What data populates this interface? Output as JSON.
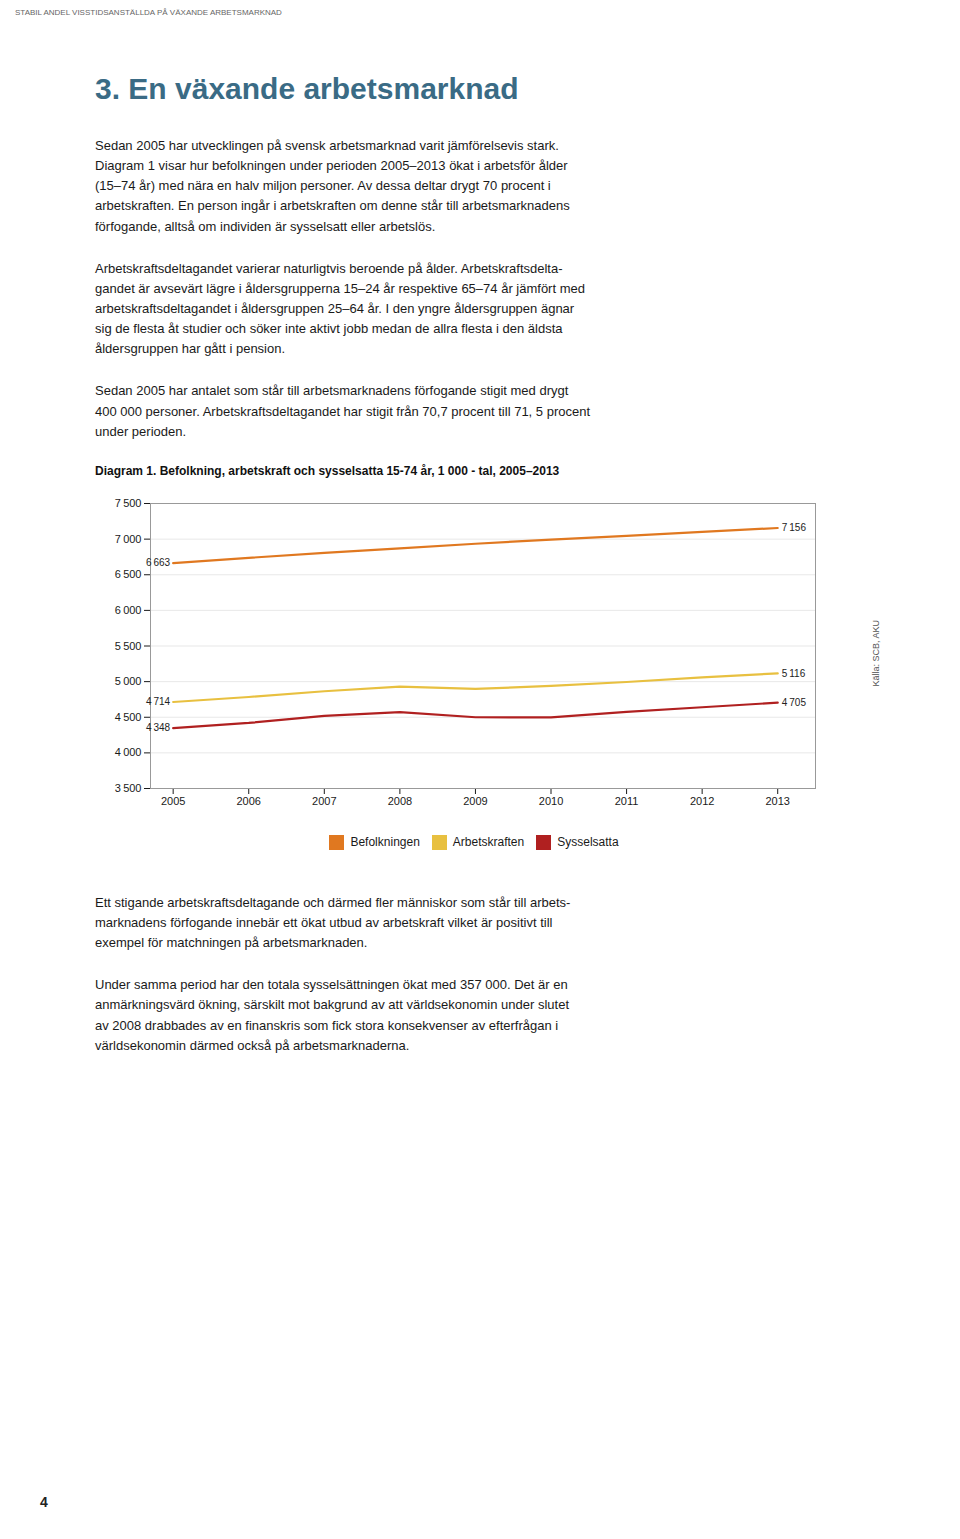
{
  "header": "STABIL ANDEL VISSTIDSANSTÄLLDA PÅ VÄXANDE ARBETSMARKNAD",
  "section_title": "3.  En växande arbetsmarknad",
  "paragraphs_before": [
    "Sedan 2005 har utvecklingen på svensk arbetsmarknad varit jämförelsevis stark.\nDiagram 1 visar hur befolkningen under perioden 2005–2013 ökat i arbetsför ålder\n(15–74 år) med nära en halv miljon personer. Av dessa deltar drygt 70 procent i\narbetskraften. En person ingår i arbetskraften om denne står till arbetsmarknadens\nförfogande, alltså om individen är sysselsatt eller arbetslös.",
    "Arbetskraftsdeltagandet varierar naturligtvis beroende på ålder. Arbetskraftsdelta-\ngandet är avsevärt lägre i åldersgrupperna 15–24 år respektive 65–74 år jämfört med\narbetskraftsdeltagandet i åldersgruppen 25–64 år. I den yngre åldersgruppen ägnar\nsig de flesta åt studier och söker inte aktivt jobb medan de allra flesta i den äldsta\nåldersgruppen har gått i pension.",
    "Sedan 2005 har antalet som står till arbetsmarknadens förfogande stigit med drygt\n400 000 personer. Arbetskraftsdeltagandet har stigit från 70,7 procent till 71, 5 procent\nunder perioden."
  ],
  "paragraphs_after": [
    "Ett stigande arbetskraftsdeltagande och därmed fler människor som står till arbets-\nmarknadens förfogande innebär ett ökat utbud av arbetskraft vilket är positivt till\nexempel för matchningen på arbetsmarknaden.",
    "Under samma period har den totala sysselsättningen ökat med 357 000. Det är en\nanmärkningsvärd ökning, särskilt mot bakgrund av att världsekonomin under slutet\nav 2008 drabbades av en finanskris som fick stora konsekvenser av efterfrågan i\nvärldsekonomin därmed också på arbetsmarknaderna."
  ],
  "page_number": "4",
  "chart_data": {
    "type": "line",
    "title": "Diagram 1. Befolkning, arbetskraft och sysselsatta 15-74 år, 1 000 - tal, 2005–2013",
    "source": "Källa: SCB, AKU",
    "x": [
      2005,
      2006,
      2007,
      2008,
      2009,
      2010,
      2011,
      2012,
      2013
    ],
    "xlim": [
      2004.7,
      2013.5
    ],
    "xticks": [
      2005,
      2006,
      2007,
      2008,
      2009,
      2010,
      2011,
      2012,
      2013
    ],
    "ylim": [
      3500,
      7500
    ],
    "yticks": [
      {
        "value": 3500,
        "label": "3 500"
      },
      {
        "value": 4000,
        "label": "4 000"
      },
      {
        "value": 4500,
        "label": "4 500"
      },
      {
        "value": 5000,
        "label": "5 000"
      },
      {
        "value": 5500,
        "label": "5 500"
      },
      {
        "value": 6000,
        "label": "6 000"
      },
      {
        "value": 6500,
        "label": "6 500"
      },
      {
        "value": 7000,
        "label": "7 000"
      },
      {
        "value": 7500,
        "label": "7 500"
      }
    ],
    "grid": true,
    "legend": "bottom",
    "series": [
      {
        "name": "Befolkningen",
        "color": "#E07820",
        "values": [
          6663,
          6737,
          6806,
          6870,
          6935,
          6993,
          7046,
          7101,
          7156
        ],
        "value_labels": [
          "6 663",
          null,
          null,
          null,
          null,
          null,
          null,
          null,
          "7 156"
        ]
      },
      {
        "name": "Arbetskraften",
        "color": "#E8C040",
        "values": [
          4714,
          4784,
          4865,
          4930,
          4897,
          4940,
          4995,
          5060,
          5116
        ],
        "value_labels": [
          "4 714",
          null,
          null,
          null,
          null,
          null,
          null,
          null,
          "5 116"
        ]
      },
      {
        "name": "Sysselsatta",
        "color": "#B02020",
        "values": [
          4348,
          4420,
          4519,
          4572,
          4500,
          4499,
          4575,
          4640,
          4705
        ],
        "value_labels": [
          "4 348",
          null,
          null,
          null,
          null,
          null,
          null,
          null,
          "4 705"
        ]
      }
    ]
  }
}
